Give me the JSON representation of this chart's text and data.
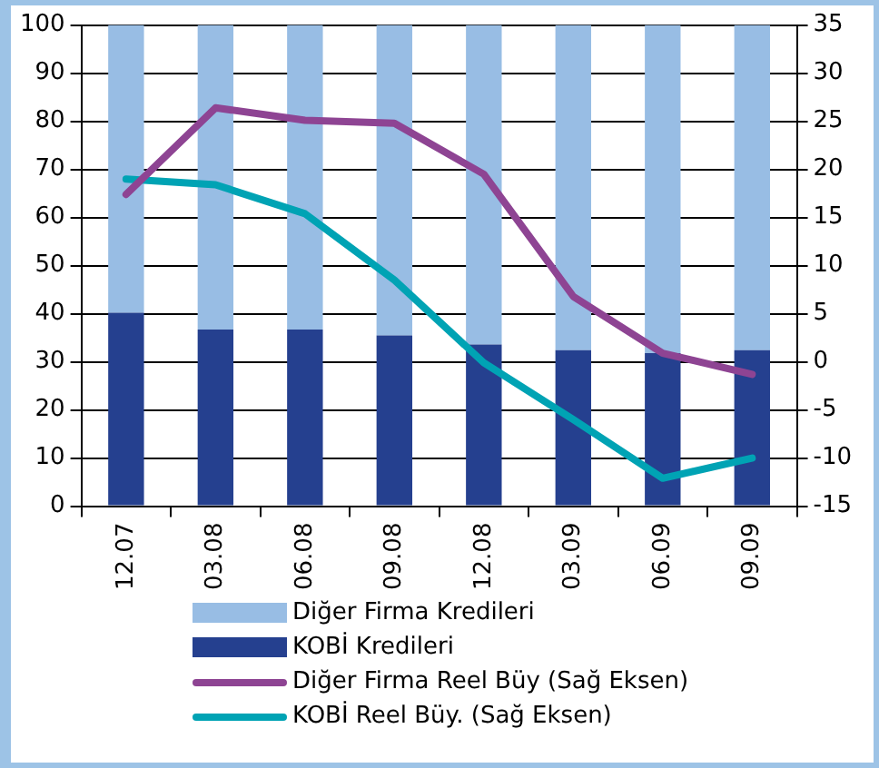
{
  "chart_data": {
    "type": "bar",
    "stacked": true,
    "categories": [
      "12.07",
      "03.08",
      "06.08",
      "09.08",
      "12.08",
      "03.09",
      "06.09",
      "09.09"
    ],
    "series": [
      {
        "name": "KOBİ Kredileri",
        "color": "#25408f",
        "values": [
          40.2,
          36.7,
          36.7,
          35.5,
          33.6,
          32.4,
          31.8,
          32.4
        ]
      },
      {
        "name": "Diğer Firma Kredileri",
        "color": "#98bde4",
        "values": [
          59.8,
          63.3,
          63.3,
          64.5,
          66.4,
          67.6,
          68.2,
          67.6
        ]
      },
      {
        "name": "Diğer Firma Reel Büy (Sağ Eksen)",
        "type": "line",
        "axis": "y2",
        "color": "#8e4493",
        "values": [
          17.4,
          26.4,
          25.1,
          24.8,
          19.5,
          6.8,
          0.9,
          -1.3
        ]
      },
      {
        "name": "KOBİ Reel Büy. (Sağ Eksen)",
        "type": "line",
        "axis": "y2",
        "color": "#00a3b4",
        "values": [
          19.0,
          18.4,
          15.4,
          8.5,
          -0.1,
          -6.0,
          -12.1,
          -10.0
        ]
      }
    ],
    "ylim": [
      0,
      100
    ],
    "yticks": [
      0,
      10,
      20,
      30,
      40,
      50,
      60,
      70,
      80,
      90,
      100
    ],
    "y2lim": [
      -15,
      35
    ],
    "y2ticks": [
      -15,
      -10,
      -5,
      0,
      5,
      10,
      15,
      20,
      25,
      30,
      35
    ],
    "grid": "y",
    "legend": "bottom",
    "marker": "none"
  }
}
